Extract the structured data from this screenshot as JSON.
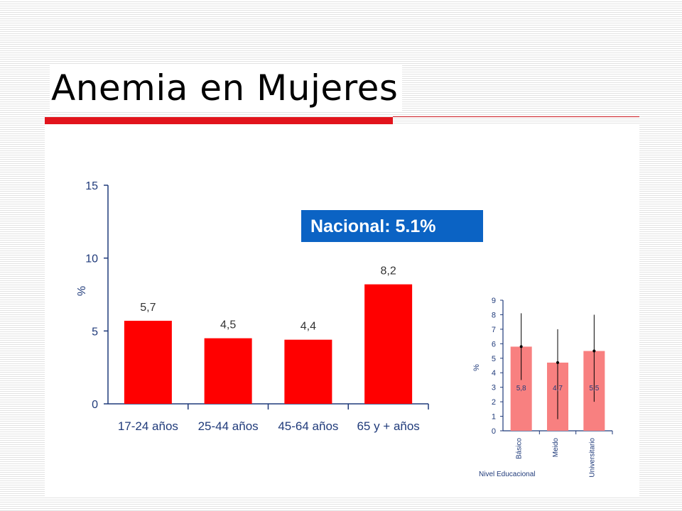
{
  "slide": {
    "title": "Anemia en Mujeres"
  },
  "colors": {
    "accent_red": "#e2141c",
    "bar_red": "#ff0000",
    "bar_pink": "#f88080",
    "badge_blue": "#0b63c4",
    "label_blue": "#1f3a7a"
  },
  "badge": {
    "text": "Nacional: 5.1%"
  },
  "chart_data": [
    {
      "type": "bar",
      "categories": [
        "17-24 años",
        "25-44 años",
        "45-64 años",
        "65 y + años"
      ],
      "values": [
        5.7,
        4.5,
        4.4,
        8.2
      ],
      "value_labels": [
        "5,7",
        "4,5",
        "4,4",
        "8,2"
      ],
      "ylabel": "%",
      "ylim": [
        0,
        15
      ],
      "yticks": [
        0,
        5,
        10,
        15
      ],
      "grid": false,
      "annotation": "Nacional: 5.1%"
    },
    {
      "type": "bar",
      "categories": [
        "Básico",
        "Meido",
        "Universitario"
      ],
      "values": [
        5.8,
        4.7,
        5.5
      ],
      "value_labels": [
        "5,8",
        "4,7",
        "5,5"
      ],
      "error_bars": [
        [
          3.5,
          8.1
        ],
        [
          0.8,
          7.0
        ],
        [
          2.0,
          8.0
        ]
      ],
      "ylabel": "%",
      "xlabel": "Nivel Educacional",
      "ylim": [
        0,
        9
      ],
      "yticks": [
        0,
        1,
        2,
        3,
        4,
        5,
        6,
        7,
        8,
        9
      ],
      "grid": false
    }
  ]
}
